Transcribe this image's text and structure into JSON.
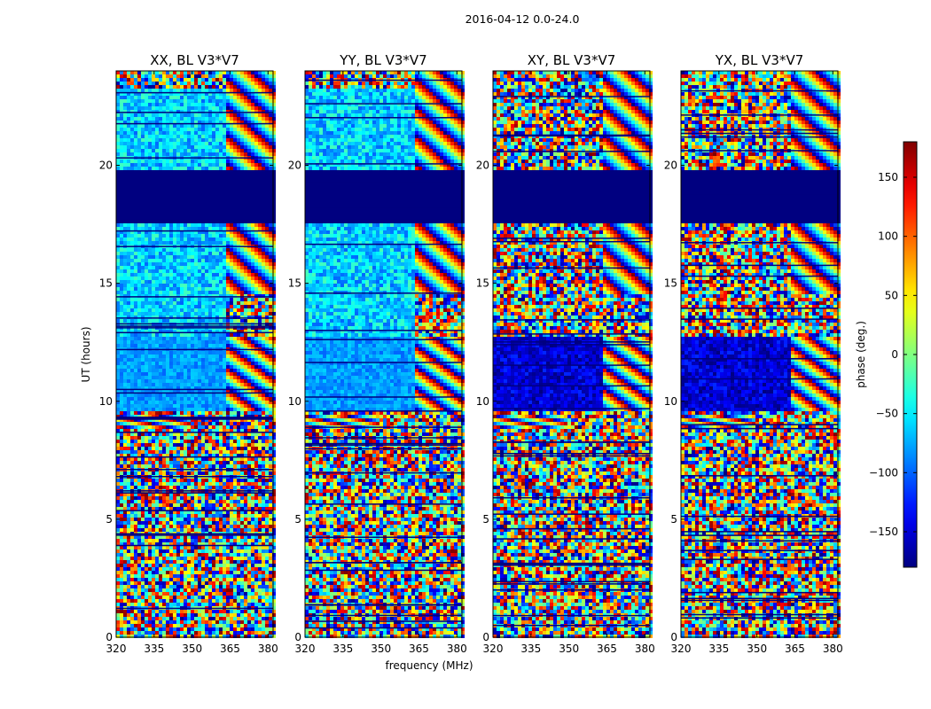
{
  "chart_data": {
    "type": "heatmap",
    "suptitle": "2016-04-12 0.0-24.0",
    "xlabel": "frequency (MHz)",
    "ylabel": "UT (hours)",
    "xlim": [
      320,
      382
    ],
    "ylim": [
      0,
      24
    ],
    "xticks": [
      "320",
      "335",
      "350",
      "365",
      "380"
    ],
    "xtick_values": [
      320,
      335,
      350,
      365,
      380
    ],
    "yticks": [
      "0",
      "5",
      "10",
      "15",
      "20"
    ],
    "ytick_values": [
      0,
      5,
      10,
      15,
      20
    ],
    "colorbar": {
      "label": "phase (deg.)",
      "range": [
        -180,
        180
      ],
      "ticks": [
        "−150",
        "−100",
        "−50",
        "0",
        "50",
        "100",
        "150"
      ],
      "tick_values": [
        -150,
        -100,
        -50,
        0,
        50,
        100,
        150
      ],
      "colormap": [
        "#00007f",
        "#0000ff",
        "#007fff",
        "#00ffff",
        "#7fff7f",
        "#ffff00",
        "#ff7f00",
        "#ff0000",
        "#7f0000"
      ]
    },
    "panels": [
      {
        "title": "XX, BL V3*V7",
        "polarization": "XX"
      },
      {
        "title": "YY, BL V3*V7",
        "polarization": "YY"
      },
      {
        "title": "XY, BL V3*V7",
        "polarization": "XY"
      },
      {
        "title": "YX, BL V3*V7",
        "polarization": "YX"
      }
    ],
    "features": {
      "no_data_block_UT": [
        17.6,
        19.8
      ],
      "no_data_value": -180,
      "flat_band_UT": [
        9.6,
        12.7
      ],
      "fringe_band_UT": [
        8.9,
        9.4
      ],
      "fringe_onset_MHz": 363
    }
  }
}
